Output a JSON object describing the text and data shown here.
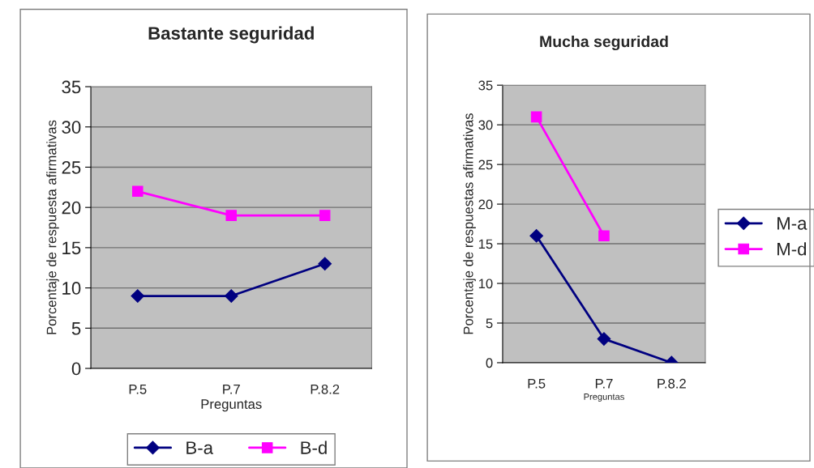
{
  "chart_data": [
    {
      "type": "line",
      "title": "Bastante seguridad",
      "xlabel": "Preguntas",
      "ylabel": "Porcentaje de respuesta afirmativas",
      "categories": [
        "P.5",
        "P.7",
        "P.8.2"
      ],
      "ylim": [
        0,
        35
      ],
      "yticks": [
        0,
        5,
        10,
        15,
        20,
        25,
        30,
        35
      ],
      "grid": "y",
      "legend": "bottom",
      "series": [
        {
          "name": "B-a",
          "color": "#000080",
          "marker": "diamond",
          "values": [
            9,
            9,
            13
          ]
        },
        {
          "name": "B-d",
          "color": "#ff00ff",
          "marker": "square",
          "values": [
            22,
            19,
            19
          ]
        }
      ]
    },
    {
      "type": "line",
      "title": "Mucha seguridad",
      "xlabel": "Preguntas",
      "ylabel": "Porcentaje de respuestas afirmativas",
      "categories": [
        "P.5",
        "P.7",
        "P.8.2"
      ],
      "ylim": [
        0,
        35
      ],
      "yticks": [
        0,
        5,
        10,
        15,
        20,
        25,
        30,
        35
      ],
      "grid": "y",
      "legend": "right",
      "series": [
        {
          "name": "M-a",
          "color": "#000080",
          "marker": "diamond",
          "values": [
            16,
            3,
            0
          ]
        },
        {
          "name": "M-d",
          "color": "#ff00ff",
          "marker": "square",
          "values": [
            31,
            16,
            null
          ]
        }
      ]
    }
  ]
}
